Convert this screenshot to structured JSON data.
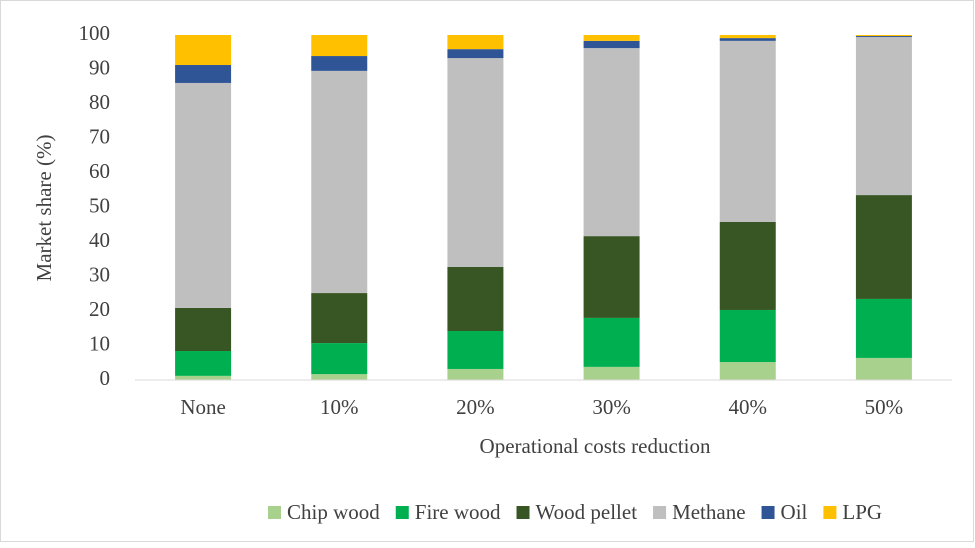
{
  "chart_data": {
    "type": "stacked_bar",
    "xlabel": "Operational  costs reduction",
    "ylabel": "Market share (%)",
    "categories": [
      "None",
      "10%",
      "20%",
      "30%",
      "40%",
      "50%"
    ],
    "series": [
      {
        "name": "Chip wood",
        "color": "#a9d18e",
        "values": [
          1.2,
          1.7,
          3.2,
          3.8,
          5.2,
          6.4
        ]
      },
      {
        "name": "Fire wood",
        "color": "#00b050",
        "values": [
          7.2,
          9.0,
          11.0,
          14.2,
          15.1,
          17.1
        ]
      },
      {
        "name": "Wood pellet",
        "color": "#375623",
        "values": [
          12.5,
          14.5,
          18.6,
          23.7,
          25.5,
          30.1
        ]
      },
      {
        "name": "Methane",
        "color": "#bfbfbf",
        "values": [
          65.2,
          64.4,
          60.5,
          54.5,
          52.5,
          45.8
        ]
      },
      {
        "name": "Oil",
        "color": "#2f5597",
        "values": [
          5.2,
          4.3,
          2.6,
          2.1,
          0.8,
          0.3
        ]
      },
      {
        "name": "LPG",
        "color": "#ffc000",
        "values": [
          8.7,
          6.1,
          4.1,
          1.7,
          0.9,
          0.3
        ]
      }
    ],
    "ylim": [
      0,
      100
    ],
    "yticks": [
      0,
      10,
      20,
      30,
      40,
      50,
      60,
      70,
      80,
      90,
      100
    ],
    "grid": false,
    "legend": "bottom"
  }
}
